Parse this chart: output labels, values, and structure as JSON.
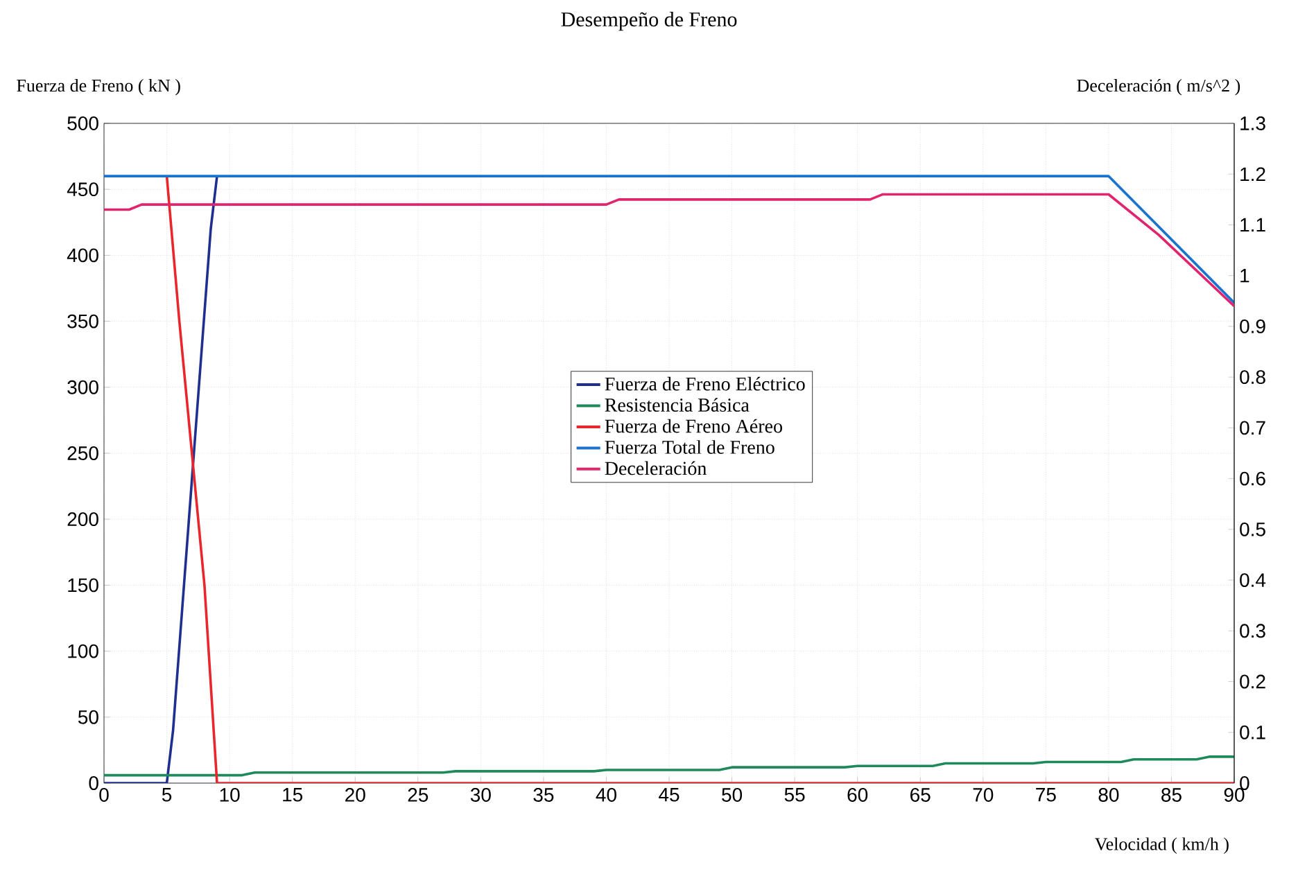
{
  "chart_data": {
    "type": "line",
    "title": "Desempeño de Freno",
    "xlabel": "Velocidad  ( km/h )",
    "ylabel": "Fuerza de Freno ( kN )",
    "y2label": "Deceleración  ( m/s^2 )",
    "xlim": [
      0,
      90
    ],
    "xticks": [
      0,
      5,
      10,
      15,
      20,
      25,
      30,
      35,
      40,
      45,
      50,
      55,
      60,
      65,
      70,
      75,
      80,
      85,
      90
    ],
    "ylim": [
      0,
      500
    ],
    "yticks": [
      0,
      50,
      100,
      150,
      200,
      250,
      300,
      350,
      400,
      450,
      500
    ],
    "y2lim": [
      0,
      1.3
    ],
    "y2ticks": [
      0,
      0.1,
      0.2,
      0.3,
      0.4,
      0.5,
      0.6,
      0.7,
      0.8,
      0.9,
      1,
      1.1,
      1.2,
      1.3
    ],
    "grid": true,
    "legend": "center",
    "marker": "none",
    "line_style": "solid",
    "series": [
      {
        "name": "Fuerza de Freno Eléctrico",
        "color": "#1f2f8f",
        "x": [
          0,
          5,
          5.5,
          7,
          8.5,
          9
        ],
        "values": [
          0,
          0,
          40,
          230,
          420,
          460
        ]
      },
      {
        "name": "Resistencia Básica",
        "color": "#1e8a5a",
        "x": [
          0,
          11,
          12,
          27,
          28,
          39,
          40,
          49,
          50,
          59,
          60,
          66,
          67,
          74,
          75,
          81,
          82,
          87,
          88,
          90
        ],
        "values": [
          6,
          6,
          8,
          8,
          9,
          9,
          10,
          10,
          12,
          12,
          13,
          13,
          15,
          15,
          16,
          16,
          18,
          18,
          20,
          20
        ]
      },
      {
        "name": "Fuerza de Freno Aéreo",
        "color": "#e8262b",
        "x": [
          5,
          6,
          8,
          9,
          90
        ],
        "values": [
          460,
          350,
          150,
          0,
          0
        ]
      },
      {
        "name": "Fuerza Total de Freno",
        "color": "#1a73d0",
        "x": [
          0,
          80,
          90
        ],
        "values": [
          460,
          460,
          364
        ]
      },
      {
        "name": "Deceleración",
        "color": "#e0246e",
        "axis": "y2",
        "x": [
          0,
          2,
          3,
          40,
          41,
          61,
          62,
          80,
          84,
          90
        ],
        "values": [
          1.13,
          1.13,
          1.14,
          1.14,
          1.15,
          1.15,
          1.16,
          1.16,
          1.08,
          0.94
        ]
      }
    ]
  }
}
